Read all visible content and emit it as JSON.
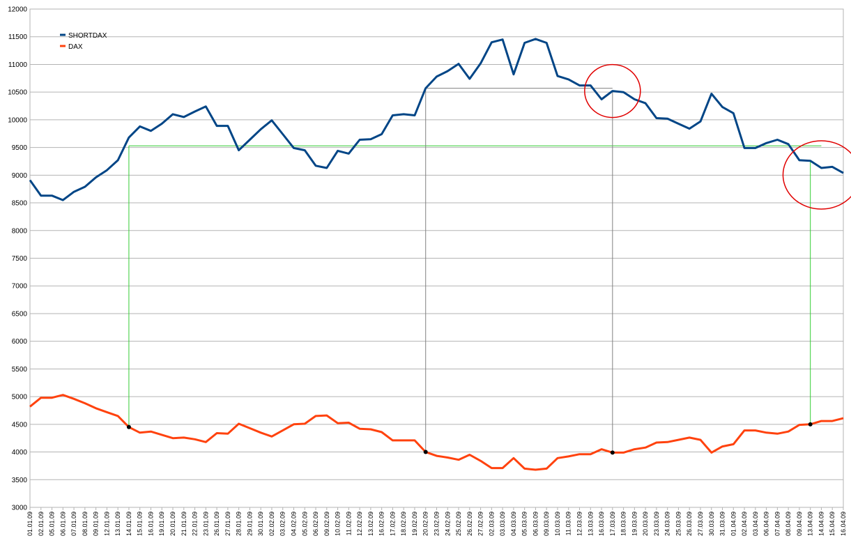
{
  "chart_data": {
    "type": "line",
    "title": "",
    "xlabel": "",
    "ylabel": "",
    "ylim": [
      3000,
      12000
    ],
    "yticks": [
      3000,
      3500,
      4000,
      4500,
      5000,
      5500,
      6000,
      6500,
      7000,
      7500,
      8000,
      8500,
      9000,
      9500,
      10000,
      10500,
      11000,
      11500,
      12000
    ],
    "grid": "horizontal",
    "legend": "top-left",
    "categories": [
      "01.01.09",
      "02.01.09",
      "05.01.09",
      "06.01.09",
      "07.01.09",
      "08.01.09",
      "09.01.09",
      "12.01.09",
      "13.01.09",
      "14.01.09",
      "15.01.09",
      "16.01.09",
      "19.01.09",
      "20.01.09",
      "21.01.09",
      "22.01.09",
      "23.01.09",
      "26.01.09",
      "27.01.09",
      "28.01.09",
      "29.01.09",
      "30.01.09",
      "02.02.09",
      "03.02.09",
      "04.02.09",
      "05.02.09",
      "06.02.09",
      "09.02.09",
      "10.02.09",
      "11.02.09",
      "12.02.09",
      "13.02.09",
      "16.02.09",
      "17.02.09",
      "18.02.09",
      "19.02.09",
      "20.02.09",
      "23.02.09",
      "24.02.09",
      "25.02.09",
      "26.02.09",
      "27.02.09",
      "02.03.09",
      "03.03.09",
      "04.03.09",
      "05.03.09",
      "06.03.09",
      "09.03.09",
      "10.03.09",
      "11.03.09",
      "12.03.09",
      "13.03.09",
      "16.03.09",
      "17.03.09",
      "18.03.09",
      "19.03.09",
      "20.03.09",
      "23.03.09",
      "24.03.09",
      "25.03.09",
      "26.03.09",
      "27.03.09",
      "30.03.09",
      "31.03.09",
      "01.04.09",
      "02.04.09",
      "03.04.09",
      "06.04.09",
      "07.04.09",
      "08.04.09",
      "09.04.09",
      "13.04.09",
      "14.04.09",
      "15.04.09",
      "16.04.09"
    ],
    "xtick_labels": [
      "01.01.09",
      "02.01.09",
      "05.01.09",
      "06.01.09",
      "07.01.09",
      "08.01.09",
      "09.01.09",
      "12.01.09",
      "13.01.09",
      "14.01.09",
      "15.01.09",
      "16.01.09",
      "19.01.09",
      "20.01.09",
      "21.01.09",
      "22.01.09",
      "23.01.09",
      "26.01.09",
      "27.01.09",
      "28.01.09",
      "29.01.09",
      "30.01.09",
      "02.02.09",
      "03.02.09",
      "04.02.09",
      "05.02.09",
      "06.02.09",
      "09.02.09",
      "10.02.09",
      "11.02.09",
      "12.02.09",
      "13.02.09",
      "16.02.09",
      "17.02.09",
      "18.02.09",
      "19.02.09",
      "20.02.09",
      "23.02.09",
      "24.02.09",
      "25.02.09",
      "26.02.09",
      "27.02.09",
      "02.03.09",
      "03.03.09",
      "04.03.09",
      "05.03.09",
      "06.03.09",
      "09.03.09",
      "10.03.09",
      "11.03.09",
      "12.03.09",
      "13.03.09",
      "16.03.09",
      "17.03.09",
      "18.03.09",
      "19.03.09",
      "20.03.09",
      "23.03.09",
      "24.03.09",
      "25.03.09",
      "26.03.09",
      "27.03.09",
      "30.03.09",
      "31.03.09",
      "01.04.09",
      "02.04.09",
      "03.04.09",
      "06.04.09",
      "07.04.09",
      "08.04.09",
      "09.04.09",
      "13.04.09",
      "14.04.09",
      "15.04.09",
      "16.04.09"
    ],
    "series": [
      {
        "name": "SHORTDAX",
        "color": "#004586",
        "values": [
          8910,
          8630,
          8630,
          8550,
          8700,
          8790,
          8960,
          9090,
          9270,
          9680,
          9880,
          9800,
          9930,
          10100,
          10050,
          10150,
          10240,
          9890,
          9890,
          9450,
          9640,
          9830,
          9990,
          9740,
          9490,
          9450,
          9170,
          9130,
          9440,
          9390,
          9640,
          9650,
          9740,
          10080,
          10100,
          10080,
          10570,
          10780,
          10880,
          11010,
          10740,
          11020,
          11400,
          11450,
          10820,
          11390,
          11460,
          11390,
          10790,
          10730,
          10620,
          10620,
          10370,
          10520,
          10500,
          10370,
          10300,
          10030,
          10020,
          9930,
          9840,
          9970,
          10470,
          10230,
          10120,
          9490,
          9490,
          9580,
          9640,
          9560,
          9270,
          9260,
          9130,
          9150,
          9040
        ]
      },
      {
        "name": "DAX",
        "color": "#ff420e",
        "values": [
          4820,
          4980,
          4980,
          5030,
          4960,
          4880,
          4790,
          4720,
          4650,
          4450,
          4350,
          4370,
          4310,
          4250,
          4260,
          4230,
          4180,
          4340,
          4330,
          4510,
          4430,
          4350,
          4280,
          4390,
          4500,
          4510,
          4650,
          4660,
          4520,
          4530,
          4420,
          4410,
          4360,
          4210,
          4210,
          4210,
          4000,
          3930,
          3900,
          3860,
          3950,
          3840,
          3710,
          3710,
          3890,
          3700,
          3680,
          3700,
          3890,
          3920,
          3960,
          3960,
          4050,
          3990,
          3990,
          4050,
          4080,
          4170,
          4180,
          4220,
          4260,
          4220,
          3990,
          4100,
          4140,
          4390,
          4390,
          4350,
          4330,
          4370,
          4490,
          4500,
          4560,
          4560,
          4610
        ]
      }
    ],
    "annotations": {
      "green_level": 9530,
      "grey_level": 10570,
      "green_start_index": 9,
      "green_end_index": 72,
      "grey_start_index": 36,
      "grey_end_index": 53,
      "marked_dax_indices": [
        9,
        36,
        53,
        71
      ],
      "circle_indices": [
        53,
        72
      ]
    }
  }
}
